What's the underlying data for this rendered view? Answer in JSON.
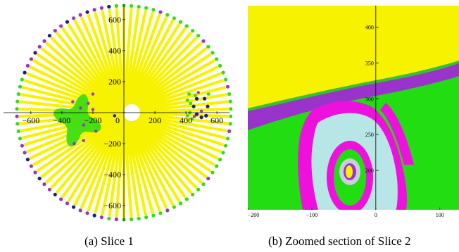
{
  "figure": {
    "panel_a": {
      "caption": "(a) Slice 1",
      "colors": {
        "spokes": "#f7f200",
        "green": "#33dd11",
        "purple": "#9933cc",
        "blue": "#1a1a99",
        "hole": "#ffffff"
      }
    },
    "panel_b": {
      "caption": "(b) Zoomed section of Slice 2",
      "colors": {
        "yellow": "#f7f200",
        "green": "#22dd11",
        "purple": "#9933cc",
        "magenta": "#ee11dd",
        "lightblue": "#b8e6e6",
        "grey": "#ccccdd"
      }
    }
  },
  "chart_data": [
    {
      "type": "scatter",
      "title": "",
      "xlabel": "",
      "ylabel": "",
      "xlim": [
        -700,
        720
      ],
      "ylim": [
        -720,
        700
      ],
      "x_ticks": [
        -600,
        -400,
        -200,
        0,
        200,
        400,
        600
      ],
      "y_ticks": [
        -600,
        -400,
        -200,
        0,
        200,
        400,
        600
      ],
      "x_tick_labels": [
        "−600",
        "−400",
        "−200",
        "0",
        "200",
        "400",
        "600"
      ],
      "y_tick_labels": [
        "−600",
        "−400",
        "−200",
        "200",
        "400",
        "600"
      ],
      "ring_radius": 690,
      "spoke_count": 90,
      "hole_radius": 55,
      "legend": "none"
    },
    {
      "type": "heatmap",
      "title": "",
      "xlabel": "",
      "ylabel": "",
      "xlim": [
        -200,
        130
      ],
      "ylim": [
        145,
        430
      ],
      "x_ticks": [
        -200,
        -100,
        0,
        100
      ],
      "y_ticks": [
        200,
        250,
        300,
        350,
        400
      ],
      "x_tick_labels": [
        "−200",
        "−100",
        "0",
        "100"
      ],
      "y_tick_labels": [
        "200",
        "250",
        "300",
        "350",
        "400"
      ],
      "legend": "none"
    }
  ]
}
